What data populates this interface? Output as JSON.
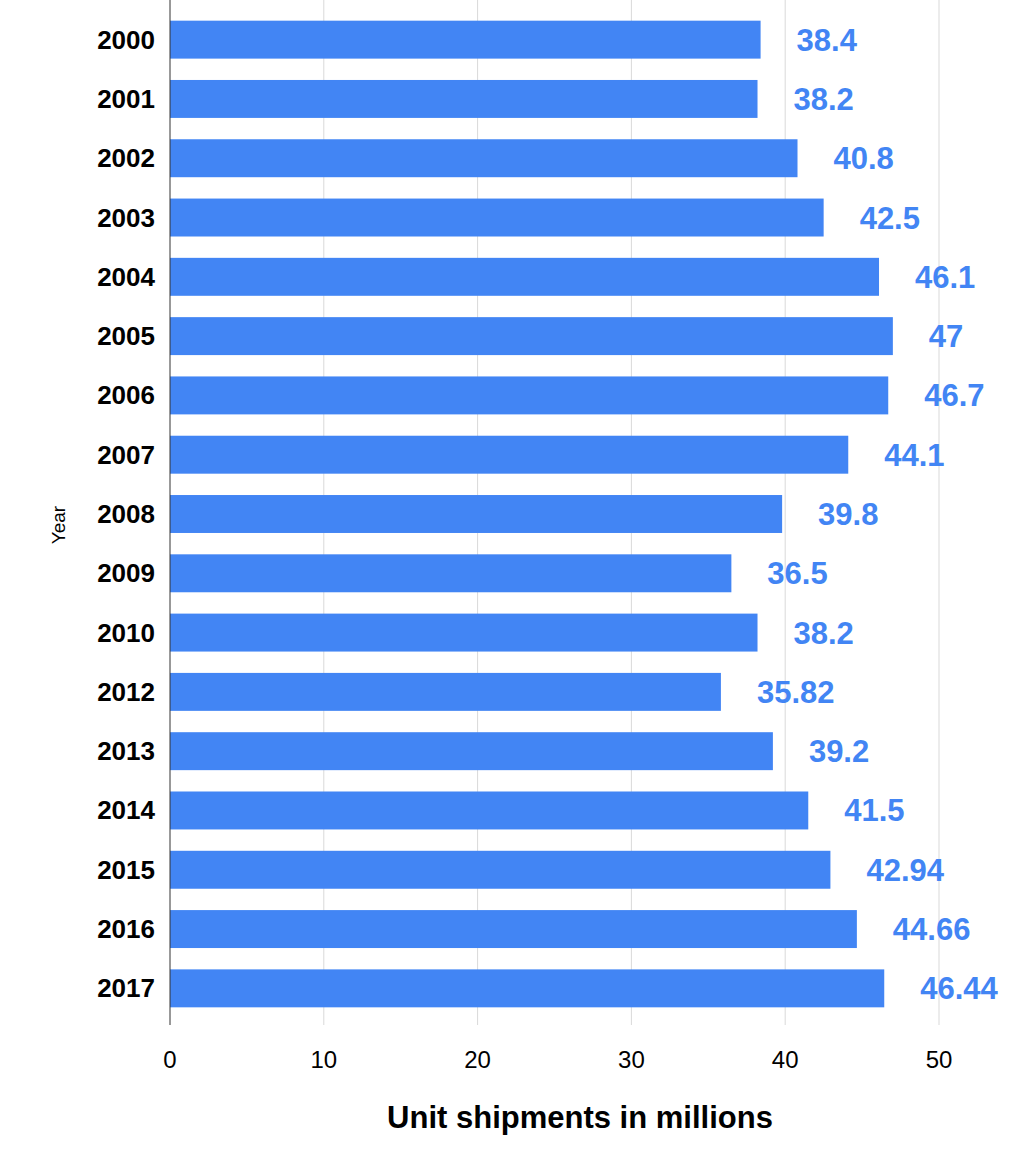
{
  "chart_data": {
    "type": "bar",
    "orientation": "horizontal",
    "xlabel": "Unit shipments in millions",
    "ylabel": "Year",
    "categories": [
      "2000",
      "2001",
      "2002",
      "2003",
      "2004",
      "2005",
      "2006",
      "2007",
      "2008",
      "2009",
      "2010",
      "2012",
      "2013",
      "2014",
      "2015",
      "2016",
      "2017"
    ],
    "values": [
      38.4,
      38.2,
      40.8,
      42.5,
      46.1,
      47,
      46.7,
      44.1,
      39.8,
      36.5,
      38.2,
      35.82,
      39.2,
      41.5,
      42.94,
      44.66,
      46.44
    ],
    "color": "#4285f4",
    "xlim": [
      0,
      50
    ],
    "xticks": [
      0,
      10,
      20,
      30,
      40,
      50
    ],
    "grid": true,
    "data_labels": true
  }
}
